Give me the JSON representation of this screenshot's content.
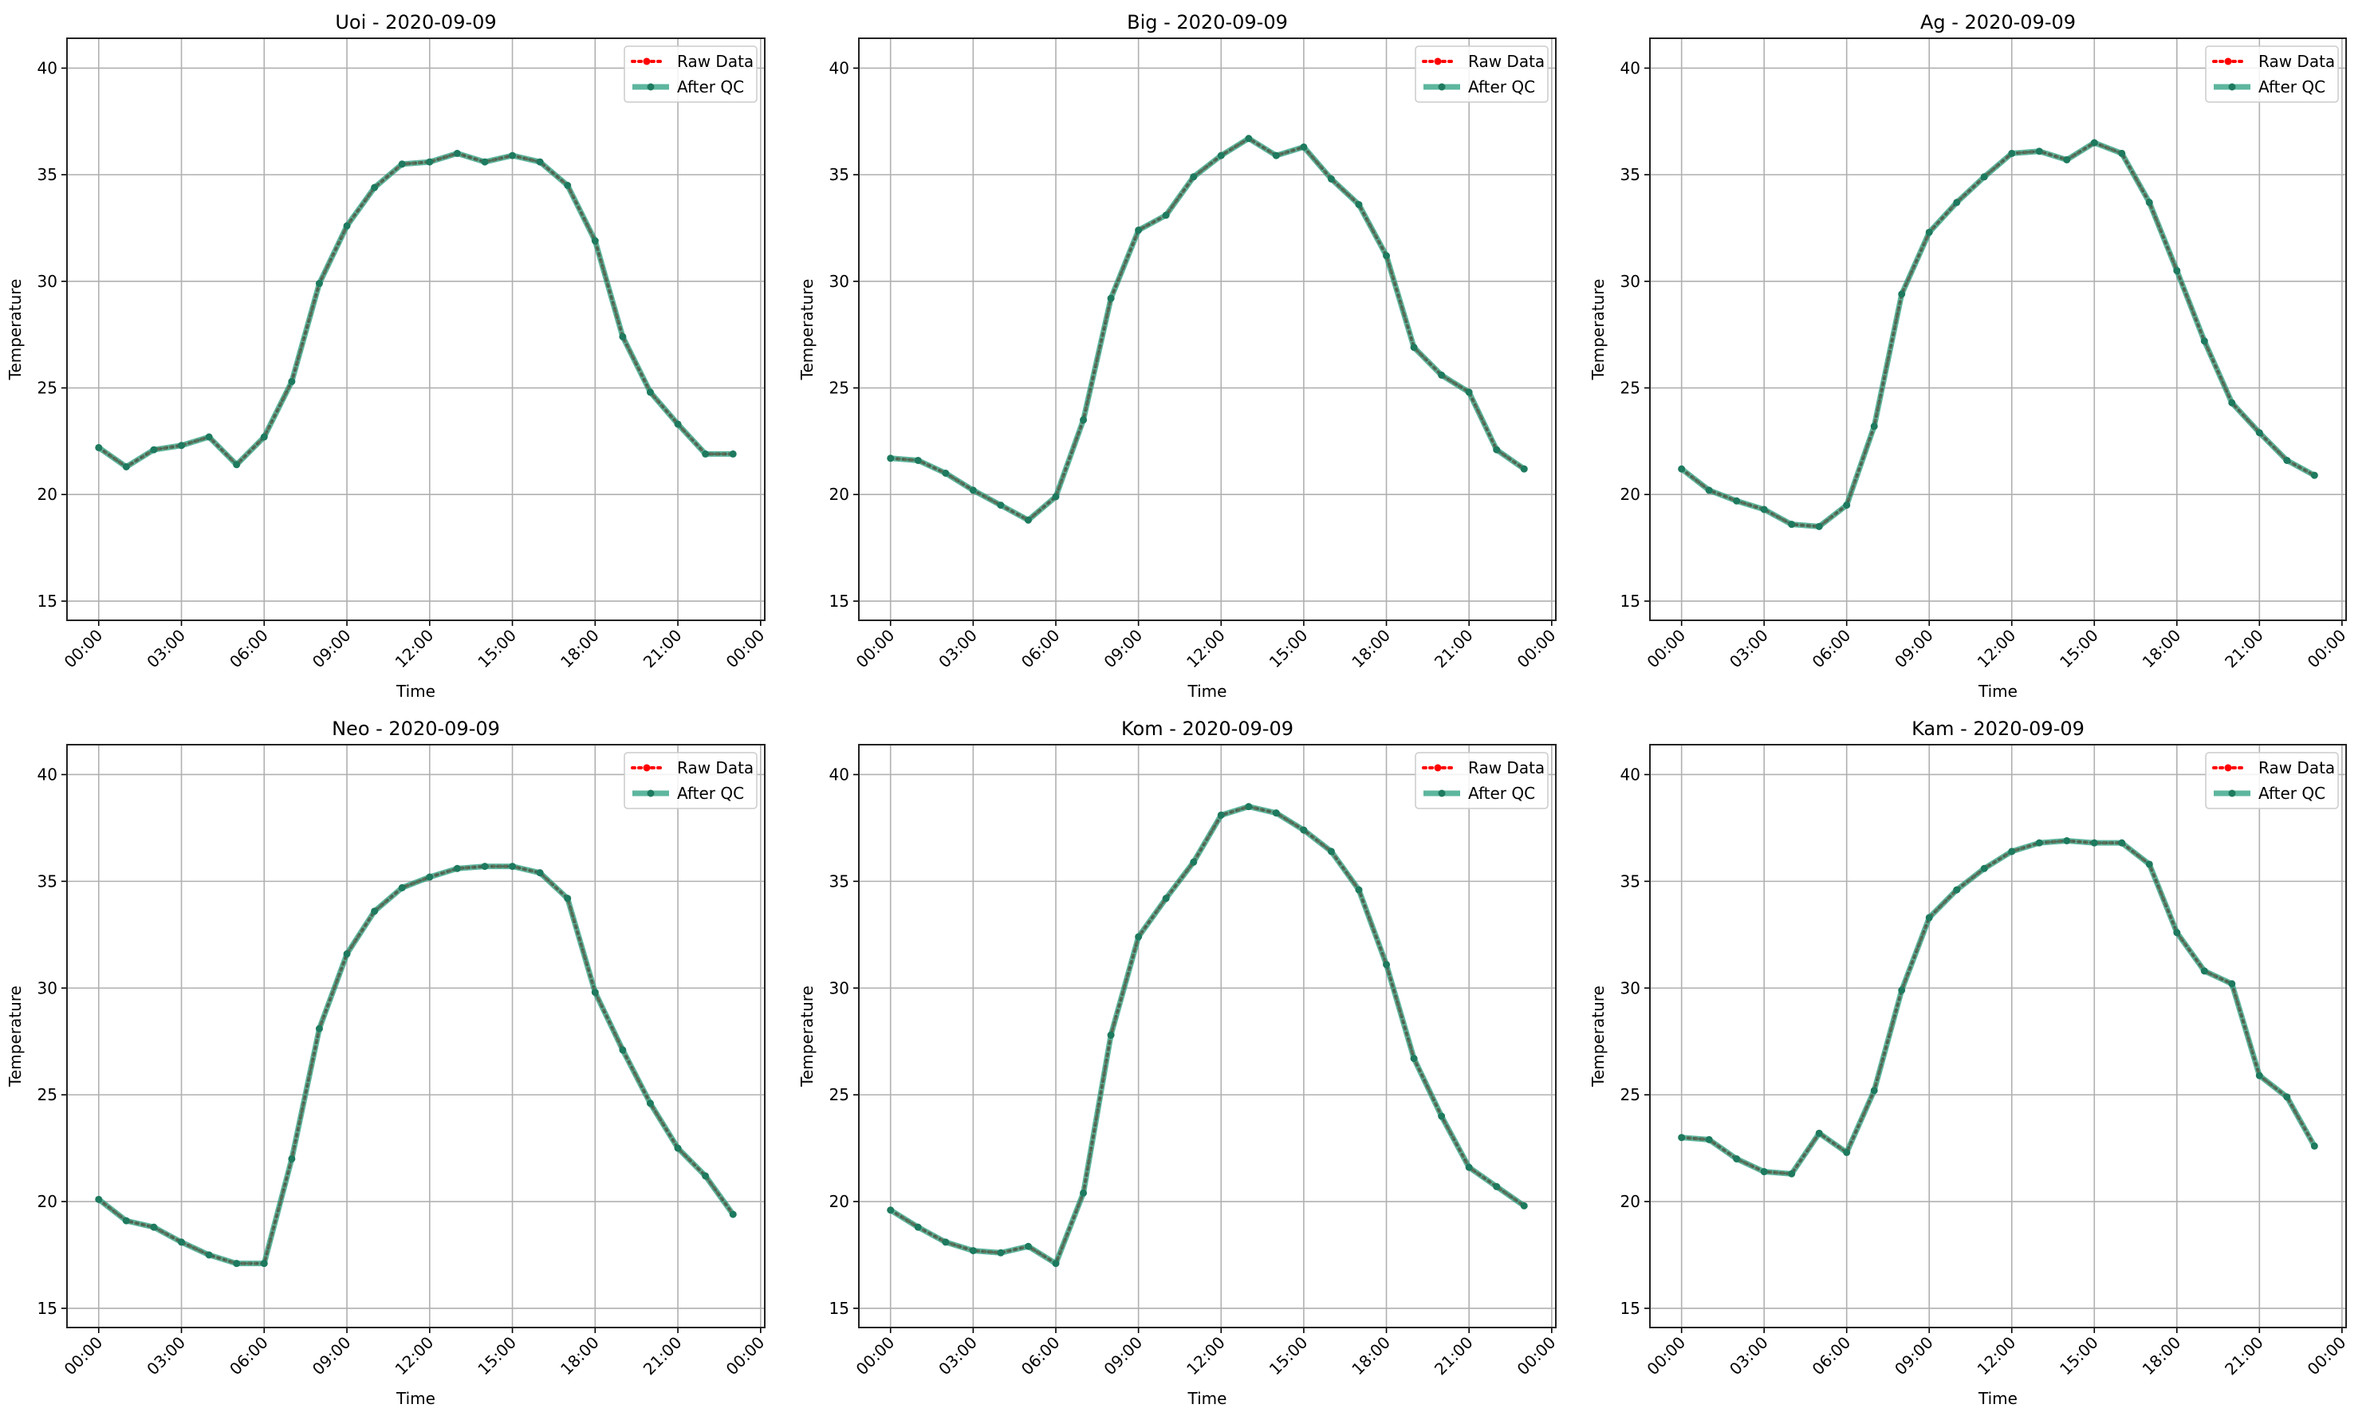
{
  "colors": {
    "raw": "#ff0000",
    "qc": "#1f9a78",
    "marker": "#1e7a5e",
    "grid": "#b0b0b0"
  },
  "chart_data": [
    {
      "type": "line",
      "title": "Uoi - 2020-09-09",
      "xlabel": "Time",
      "ylabel": "Temperature",
      "ylim": [
        14.1,
        41.4
      ],
      "xlim_hours": [
        -1.15,
        24.15
      ],
      "grid": true,
      "legend": "top-right",
      "x_ticks": [
        "00:00",
        "03:00",
        "06:00",
        "09:00",
        "12:00",
        "15:00",
        "18:00",
        "21:00",
        "00:00"
      ],
      "y_ticks": [
        15,
        20,
        25,
        30,
        35,
        40
      ],
      "legend_entries": [
        "Raw Data",
        "After QC"
      ],
      "x_hours": [
        0,
        1,
        2,
        3,
        4,
        5,
        6,
        7,
        8,
        9,
        10,
        11,
        12,
        13,
        14,
        15,
        16,
        17,
        18,
        19,
        20,
        21,
        22,
        23
      ],
      "series": [
        {
          "name": "Raw Data",
          "values": [
            22.2,
            21.3,
            22.1,
            22.3,
            22.7,
            21.4,
            22.7,
            25.3,
            29.9,
            32.6,
            34.4,
            35.5,
            35.6,
            36.0,
            35.6,
            35.9,
            35.6,
            34.5,
            31.9,
            27.4,
            24.8,
            23.3,
            21.9,
            21.9
          ]
        },
        {
          "name": "After QC",
          "values": [
            22.2,
            21.3,
            22.1,
            22.3,
            22.7,
            21.4,
            22.7,
            25.3,
            29.9,
            32.6,
            34.4,
            35.5,
            35.6,
            36.0,
            35.6,
            35.9,
            35.6,
            34.5,
            31.9,
            27.4,
            24.8,
            23.3,
            21.9,
            21.9
          ]
        }
      ]
    },
    {
      "type": "line",
      "title": "Big - 2020-09-09",
      "xlabel": "Time",
      "ylabel": "Temperature",
      "ylim": [
        14.1,
        41.4
      ],
      "xlim_hours": [
        -1.15,
        24.15
      ],
      "grid": true,
      "legend": "top-right",
      "x_ticks": [
        "00:00",
        "03:00",
        "06:00",
        "09:00",
        "12:00",
        "15:00",
        "18:00",
        "21:00",
        "00:00"
      ],
      "y_ticks": [
        15,
        20,
        25,
        30,
        35,
        40
      ],
      "legend_entries": [
        "Raw Data",
        "After QC"
      ],
      "x_hours": [
        0,
        1,
        2,
        3,
        4,
        5,
        6,
        7,
        8,
        9,
        10,
        11,
        12,
        13,
        14,
        15,
        16,
        17,
        18,
        19,
        20,
        21,
        22,
        23
      ],
      "series": [
        {
          "name": "Raw Data",
          "values": [
            21.7,
            21.6,
            21.0,
            20.2,
            19.5,
            18.8,
            19.9,
            23.5,
            29.2,
            32.4,
            33.1,
            34.9,
            35.9,
            36.7,
            35.9,
            36.3,
            34.8,
            33.6,
            31.2,
            26.9,
            25.6,
            24.8,
            22.1,
            21.2
          ]
        },
        {
          "name": "After QC",
          "values": [
            21.7,
            21.6,
            21.0,
            20.2,
            19.5,
            18.8,
            19.9,
            23.5,
            29.2,
            32.4,
            33.1,
            34.9,
            35.9,
            36.7,
            35.9,
            36.3,
            34.8,
            33.6,
            31.2,
            26.9,
            25.6,
            24.8,
            22.1,
            21.2
          ]
        }
      ]
    },
    {
      "type": "line",
      "title": "Ag - 2020-09-09",
      "xlabel": "Time",
      "ylabel": "Temperature",
      "ylim": [
        14.1,
        41.4
      ],
      "xlim_hours": [
        -1.15,
        24.15
      ],
      "grid": true,
      "legend": "top-right",
      "x_ticks": [
        "00:00",
        "03:00",
        "06:00",
        "09:00",
        "12:00",
        "15:00",
        "18:00",
        "21:00",
        "00:00"
      ],
      "y_ticks": [
        15,
        20,
        25,
        30,
        35,
        40
      ],
      "legend_entries": [
        "Raw Data",
        "After QC"
      ],
      "x_hours": [
        0,
        1,
        2,
        3,
        4,
        5,
        6,
        7,
        8,
        9,
        10,
        11,
        12,
        13,
        14,
        15,
        16,
        17,
        18,
        19,
        20,
        21,
        22,
        23
      ],
      "series": [
        {
          "name": "Raw Data",
          "values": [
            21.2,
            20.2,
            19.7,
            19.3,
            18.6,
            18.5,
            19.5,
            23.2,
            29.4,
            32.3,
            33.7,
            34.9,
            36.0,
            36.1,
            35.7,
            36.5,
            36.0,
            33.7,
            30.5,
            27.2,
            24.3,
            22.9,
            21.6,
            20.9
          ]
        },
        {
          "name": "After QC",
          "values": [
            21.2,
            20.2,
            19.7,
            19.3,
            18.6,
            18.5,
            19.5,
            23.2,
            29.4,
            32.3,
            33.7,
            34.9,
            36.0,
            36.1,
            35.7,
            36.5,
            36.0,
            33.7,
            30.5,
            27.2,
            24.3,
            22.9,
            21.6,
            20.9
          ]
        }
      ]
    },
    {
      "type": "line",
      "title": "Neo - 2020-09-09",
      "xlabel": "Time",
      "ylabel": "Temperature",
      "ylim": [
        14.1,
        41.4
      ],
      "xlim_hours": [
        -1.15,
        24.15
      ],
      "grid": true,
      "legend": "top-right",
      "x_ticks": [
        "00:00",
        "03:00",
        "06:00",
        "09:00",
        "12:00",
        "15:00",
        "18:00",
        "21:00",
        "00:00"
      ],
      "y_ticks": [
        15,
        20,
        25,
        30,
        35,
        40
      ],
      "legend_entries": [
        "Raw Data",
        "After QC"
      ],
      "x_hours": [
        0,
        1,
        2,
        3,
        4,
        5,
        6,
        7,
        8,
        9,
        10,
        11,
        12,
        13,
        14,
        15,
        16,
        17,
        18,
        19,
        20,
        21,
        22,
        23
      ],
      "series": [
        {
          "name": "Raw Data",
          "values": [
            20.1,
            19.1,
            18.8,
            18.1,
            17.5,
            17.1,
            17.1,
            22.0,
            28.1,
            31.6,
            33.6,
            34.7,
            35.2,
            35.6,
            35.7,
            35.7,
            35.4,
            34.2,
            29.8,
            27.1,
            24.6,
            22.5,
            21.2,
            19.4
          ]
        },
        {
          "name": "After QC",
          "values": [
            20.1,
            19.1,
            18.8,
            18.1,
            17.5,
            17.1,
            17.1,
            22.0,
            28.1,
            31.6,
            33.6,
            34.7,
            35.2,
            35.6,
            35.7,
            35.7,
            35.4,
            34.2,
            29.8,
            27.1,
            24.6,
            22.5,
            21.2,
            19.4
          ]
        }
      ]
    },
    {
      "type": "line",
      "title": "Kom - 2020-09-09",
      "xlabel": "Time",
      "ylabel": "Temperature",
      "ylim": [
        14.1,
        41.4
      ],
      "xlim_hours": [
        -1.15,
        24.15
      ],
      "grid": true,
      "legend": "top-right",
      "x_ticks": [
        "00:00",
        "03:00",
        "06:00",
        "09:00",
        "12:00",
        "15:00",
        "18:00",
        "21:00",
        "00:00"
      ],
      "y_ticks": [
        15,
        20,
        25,
        30,
        35,
        40
      ],
      "legend_entries": [
        "Raw Data",
        "After QC"
      ],
      "x_hours": [
        0,
        1,
        2,
        3,
        4,
        5,
        6,
        7,
        8,
        9,
        10,
        11,
        12,
        13,
        14,
        15,
        16,
        17,
        18,
        19,
        20,
        21,
        22,
        23
      ],
      "series": [
        {
          "name": "Raw Data",
          "values": [
            19.6,
            18.8,
            18.1,
            17.7,
            17.6,
            17.9,
            17.1,
            20.4,
            27.8,
            32.4,
            34.2,
            35.9,
            38.1,
            38.5,
            38.2,
            37.4,
            36.4,
            34.6,
            31.1,
            26.7,
            24.0,
            21.6,
            20.7,
            19.8
          ]
        },
        {
          "name": "After QC",
          "values": [
            19.6,
            18.8,
            18.1,
            17.7,
            17.6,
            17.9,
            17.1,
            20.4,
            27.8,
            32.4,
            34.2,
            35.9,
            38.1,
            38.5,
            38.2,
            37.4,
            36.4,
            34.6,
            31.1,
            26.7,
            24.0,
            21.6,
            20.7,
            19.8
          ]
        }
      ]
    },
    {
      "type": "line",
      "title": "Kam - 2020-09-09",
      "xlabel": "Time",
      "ylabel": "Temperature",
      "ylim": [
        14.1,
        41.4
      ],
      "xlim_hours": [
        -1.15,
        24.15
      ],
      "grid": true,
      "legend": "top-right",
      "x_ticks": [
        "00:00",
        "03:00",
        "06:00",
        "09:00",
        "12:00",
        "15:00",
        "18:00",
        "21:00",
        "00:00"
      ],
      "y_ticks": [
        15,
        20,
        25,
        30,
        35,
        40
      ],
      "legend_entries": [
        "Raw Data",
        "After QC"
      ],
      "x_hours": [
        0,
        1,
        2,
        3,
        4,
        5,
        6,
        7,
        8,
        9,
        10,
        11,
        12,
        13,
        14,
        15,
        16,
        17,
        18,
        19,
        20,
        21,
        22,
        23
      ],
      "series": [
        {
          "name": "Raw Data",
          "values": [
            23.0,
            22.9,
            22.0,
            21.4,
            21.3,
            23.2,
            22.3,
            25.2,
            29.9,
            33.3,
            34.6,
            35.6,
            36.4,
            36.8,
            36.9,
            36.8,
            36.8,
            35.8,
            32.6,
            30.8,
            30.2,
            25.9,
            24.9,
            22.6
          ]
        },
        {
          "name": "After QC",
          "values": [
            23.0,
            22.9,
            22.0,
            21.4,
            21.3,
            23.2,
            22.3,
            25.2,
            29.9,
            33.3,
            34.6,
            35.6,
            36.4,
            36.8,
            36.9,
            36.8,
            36.8,
            35.8,
            32.6,
            30.8,
            30.2,
            25.9,
            24.9,
            22.6
          ]
        }
      ]
    }
  ]
}
